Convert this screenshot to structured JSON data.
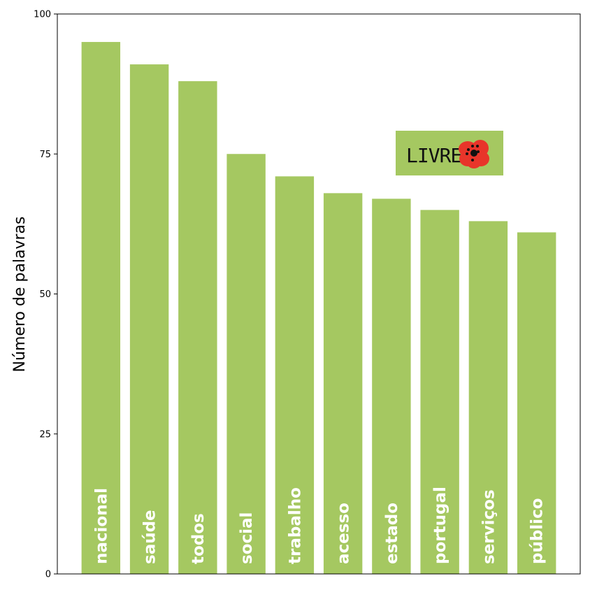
{
  "colors": {
    "bar": "#a5c861",
    "bar_label": "#ffffff",
    "logo_box": "#a5c861",
    "logo_flower": "#e8352a",
    "logo_center": "#111111",
    "logo_text": "#111111"
  },
  "logo": {
    "text": "LIVRE",
    "icon": "poppy-flower-icon"
  },
  "chart_data": {
    "type": "bar",
    "categories": [
      "nacional",
      "saúde",
      "todos",
      "social",
      "trabalho",
      "acesso",
      "estado",
      "portugal",
      "serviços",
      "público"
    ],
    "values": [
      95,
      91,
      88,
      75,
      71,
      68,
      67,
      65,
      63,
      61
    ],
    "title": "",
    "xlabel": "",
    "ylabel": "Número de palavras",
    "ylim": [
      0,
      100
    ],
    "yticks": [
      0,
      25,
      50,
      75,
      100
    ],
    "grid": false,
    "legend": "none"
  }
}
